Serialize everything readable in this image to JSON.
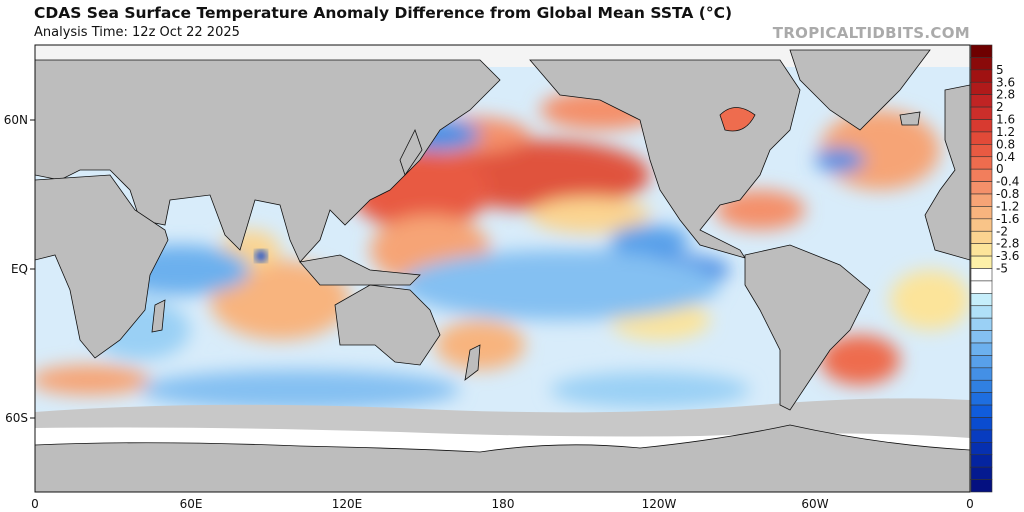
{
  "header": {
    "title": "CDAS Sea Surface Temperature Anomaly Difference from Global Mean SSTA (°C)",
    "subtitle": "Analysis Time: 12z Oct 22 2025",
    "brand": "TROPICALTIDBITS.COM"
  },
  "axes": {
    "lat_labels": [
      "60N",
      "EQ",
      "60S"
    ],
    "lon_labels": [
      "0",
      "60E",
      "120E",
      "180",
      "120W",
      "60W",
      "0"
    ]
  },
  "colorbar": {
    "labels": [
      "5",
      "3.6",
      "2.8",
      "2",
      "1.6",
      "1.2",
      "0.8",
      "0.4",
      "0",
      "-0.4",
      "-0.8",
      "-1.2",
      "-1.6",
      "-2",
      "-2.8",
      "-3.6",
      "-5"
    ],
    "colors": [
      "#6e0000",
      "#8a0a0a",
      "#a01212",
      "#b01a1a",
      "#c02424",
      "#cc2e2a",
      "#d83a30",
      "#e24a38",
      "#e85a42",
      "#ee6c4e",
      "#f27e5c",
      "#f4906a",
      "#f6a476",
      "#f8b47e",
      "#f9c488",
      "#fbd490",
      "#fce49a",
      "#fdf0a8",
      "#ffffff",
      "#ffffff",
      "#c6eefb",
      "#b0e0f8",
      "#9ad0f5",
      "#84c0f2",
      "#6cb0ee",
      "#58a0ea",
      "#4490e6",
      "#3080e2",
      "#1e6ee0",
      "#105cdc",
      "#0a4cd0",
      "#083cc0",
      "#0630b0",
      "#0424a0",
      "#041a90",
      "#041080"
    ]
  }
}
